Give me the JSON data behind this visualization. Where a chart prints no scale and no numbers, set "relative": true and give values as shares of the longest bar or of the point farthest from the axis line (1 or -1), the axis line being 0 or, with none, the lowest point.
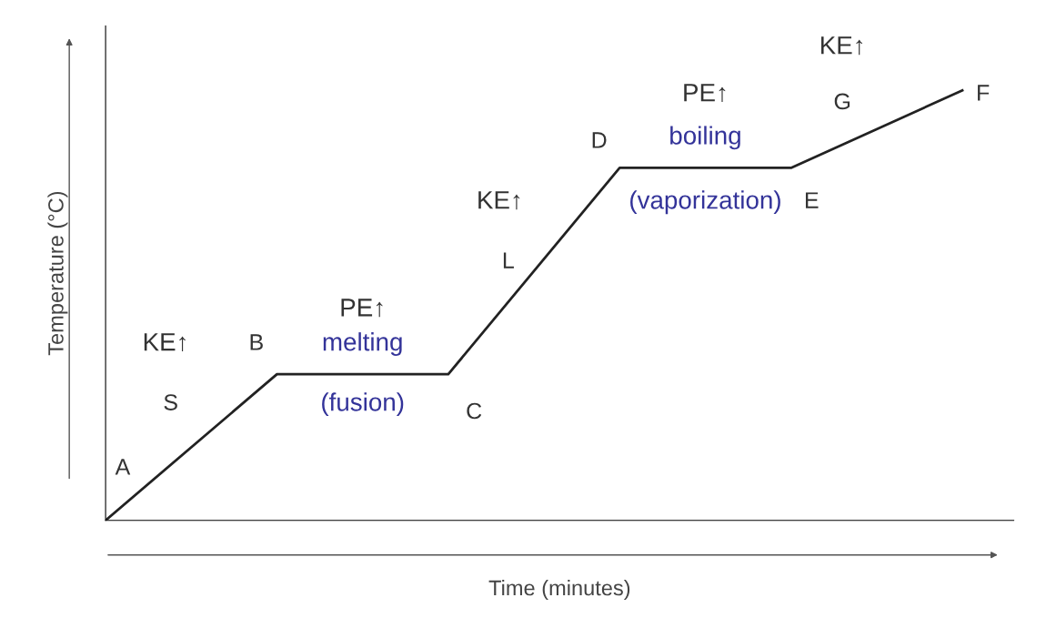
{
  "chart_data": {
    "type": "line",
    "relative": true,
    "xlabel": "Time (minutes)",
    "ylabel": "Temperature (°C)",
    "categories": [
      null,
      null,
      null,
      null,
      null,
      null
    ],
    "series": [
      {
        "color": "#222222",
        "values": [
          0,
          0.34,
          0.34,
          0.82,
          0.82,
          1.0
        ]
      }
    ],
    "annotations": [
      "A",
      "B",
      "C",
      "D",
      "E",
      "F",
      "KE↑",
      "S",
      "PE↑",
      "melting",
      "(fusion)",
      "KE↑",
      "L",
      "PE↑",
      "boiling",
      "(vaporization)",
      "KE↑",
      "G"
    ],
    "legend": false,
    "marker": "none",
    "line_style": "solid"
  }
}
